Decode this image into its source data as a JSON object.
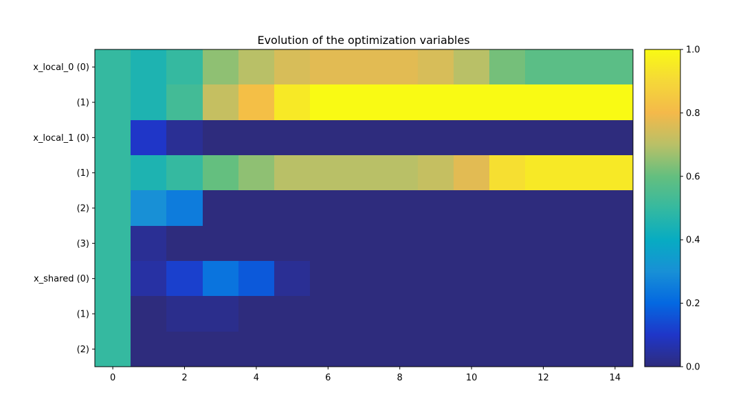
{
  "chart_data": {
    "type": "heatmap",
    "title": "Evolution of the optimization variables",
    "xlabel": "",
    "ylabel": "",
    "row_labels": [
      "x_local_0 (0)",
      "(1)",
      "x_local_1 (0)",
      "(1)",
      "(2)",
      "(3)",
      "x_shared (0)",
      "(1)",
      "(2)"
    ],
    "x_ticks": [
      0,
      2,
      4,
      6,
      8,
      10,
      12,
      14
    ],
    "columns": 15,
    "colorbar": {
      "ticks": [
        0.0,
        0.2,
        0.4,
        0.6,
        0.8,
        1.0
      ],
      "tick_labels": [
        "0.0",
        "0.2",
        "0.4",
        "0.6",
        "0.8",
        "1.0"
      ],
      "range": [
        0,
        1
      ]
    },
    "colormap": [
      [
        0.0,
        "#2e2c7d"
      ],
      [
        0.1,
        "#1f36c8"
      ],
      [
        0.2,
        "#0468e1"
      ],
      [
        0.3,
        "#1890d6"
      ],
      [
        0.4,
        "#07acc2"
      ],
      [
        0.5,
        "#35b9a0"
      ],
      [
        0.6,
        "#64bf7f"
      ],
      [
        0.7,
        "#b9c067"
      ],
      [
        0.8,
        "#f4b94a"
      ],
      [
        0.9,
        "#f5d838"
      ],
      [
        1.0,
        "#f9fa14"
      ]
    ],
    "values": [
      [
        0.5,
        0.45,
        0.5,
        0.65,
        0.7,
        0.75,
        0.77,
        0.77,
        0.77,
        0.75,
        0.7,
        0.62,
        0.58,
        0.58,
        0.58
      ],
      [
        0.5,
        0.45,
        0.53,
        0.72,
        0.82,
        0.95,
        1.0,
        1.0,
        1.0,
        1.0,
        1.0,
        1.0,
        1.0,
        1.0,
        1.0
      ],
      [
        0.5,
        0.1,
        0.03,
        0.0,
        0.0,
        0.0,
        0.0,
        0.0,
        0.0,
        0.0,
        0.0,
        0.0,
        0.0,
        0.0,
        0.0
      ],
      [
        0.5,
        0.45,
        0.5,
        0.6,
        0.65,
        0.7,
        0.7,
        0.7,
        0.7,
        0.72,
        0.77,
        0.92,
        0.95,
        0.95,
        0.95
      ],
      [
        0.5,
        0.3,
        0.25,
        0.0,
        0.0,
        0.0,
        0.0,
        0.0,
        0.0,
        0.0,
        0.0,
        0.0,
        0.0,
        0.0,
        0.0
      ],
      [
        0.5,
        0.03,
        0.0,
        0.0,
        0.0,
        0.0,
        0.0,
        0.0,
        0.0,
        0.0,
        0.0,
        0.0,
        0.0,
        0.0,
        0.0
      ],
      [
        0.5,
        0.05,
        0.12,
        0.23,
        0.17,
        0.03,
        0.0,
        0.0,
        0.0,
        0.0,
        0.0,
        0.0,
        0.0,
        0.0,
        0.0
      ],
      [
        0.5,
        0.0,
        0.02,
        0.02,
        0.0,
        0.0,
        0.0,
        0.0,
        0.0,
        0.0,
        0.0,
        0.0,
        0.0,
        0.0,
        0.0
      ],
      [
        0.5,
        0.0,
        0.0,
        0.0,
        0.0,
        0.0,
        0.0,
        0.0,
        0.0,
        0.0,
        0.0,
        0.0,
        0.0,
        0.0,
        0.0
      ]
    ]
  }
}
